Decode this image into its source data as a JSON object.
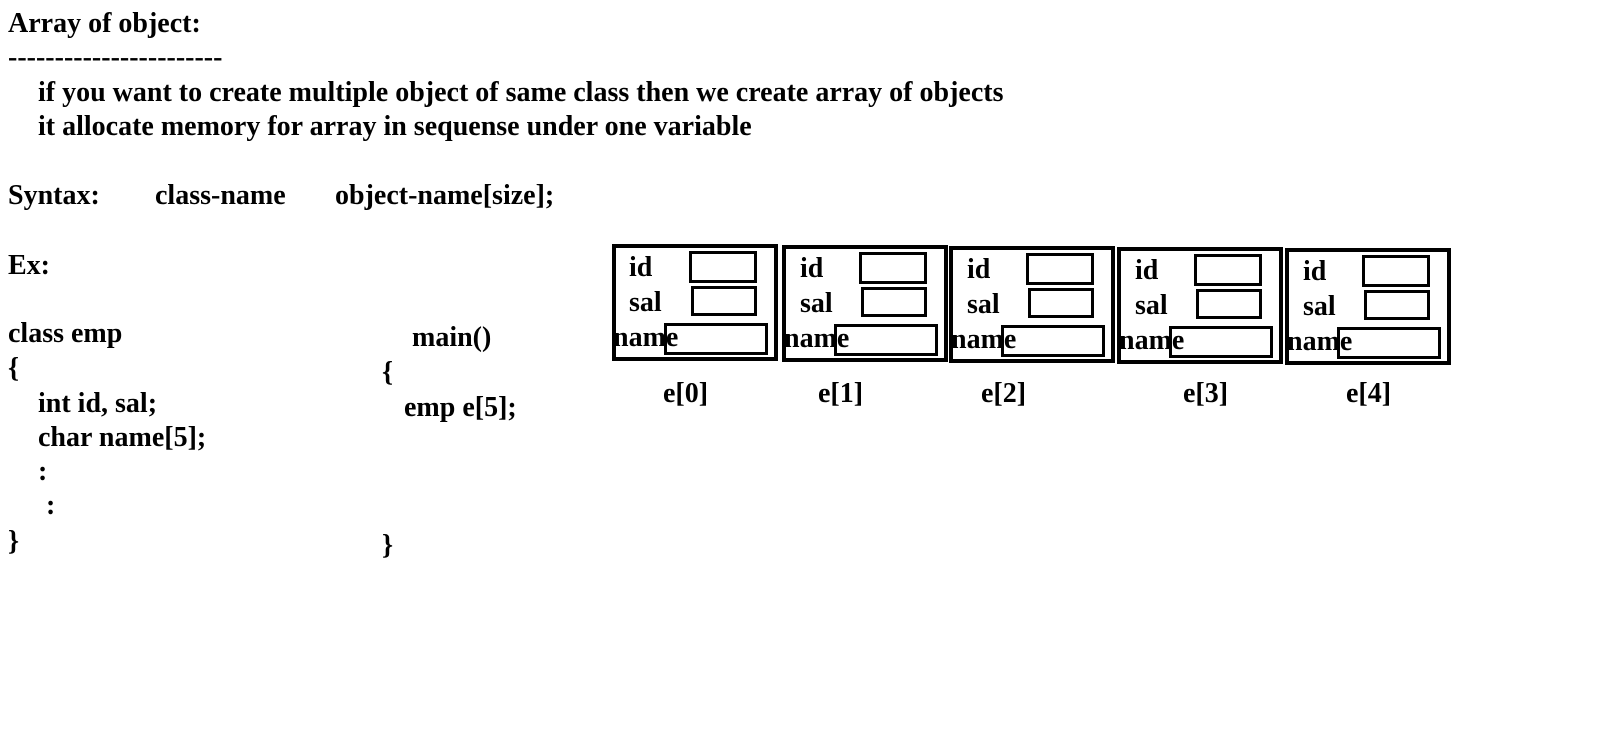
{
  "heading": "Array of object:",
  "underline": "-----------------------",
  "desc_line1": "if you want to create multiple object of same class then we create array of objects",
  "desc_line2": "it allocate memory for array in sequense under one variable",
  "syntax": {
    "label": "Syntax:",
    "class_name": "class-name",
    "object_decl": "object-name[size];"
  },
  "example_label": "Ex:",
  "class_code": {
    "line1": "class emp",
    "line2": "{",
    "line3": "int id, sal;",
    "line4": "char name[5];",
    "line5": ":",
    "line6": ":",
    "line7": "}"
  },
  "main_code": {
    "line1": "main()",
    "line2": "{",
    "line3": "emp e[5];",
    "line4": "}"
  },
  "objects": [
    {
      "index_label": "e[0]",
      "field_id": "id",
      "field_sal": "sal",
      "field_name": "name"
    },
    {
      "index_label": "e[1]",
      "field_id": "id",
      "field_sal": "sal",
      "field_name": "name"
    },
    {
      "index_label": "e[2]",
      "field_id": "id",
      "field_sal": "sal",
      "field_name": "name"
    },
    {
      "index_label": "e[3]",
      "field_id": "id",
      "field_sal": "sal",
      "field_name": "name"
    },
    {
      "index_label": "e[4]",
      "field_id": "id",
      "field_sal": "sal",
      "field_name": "name"
    }
  ]
}
